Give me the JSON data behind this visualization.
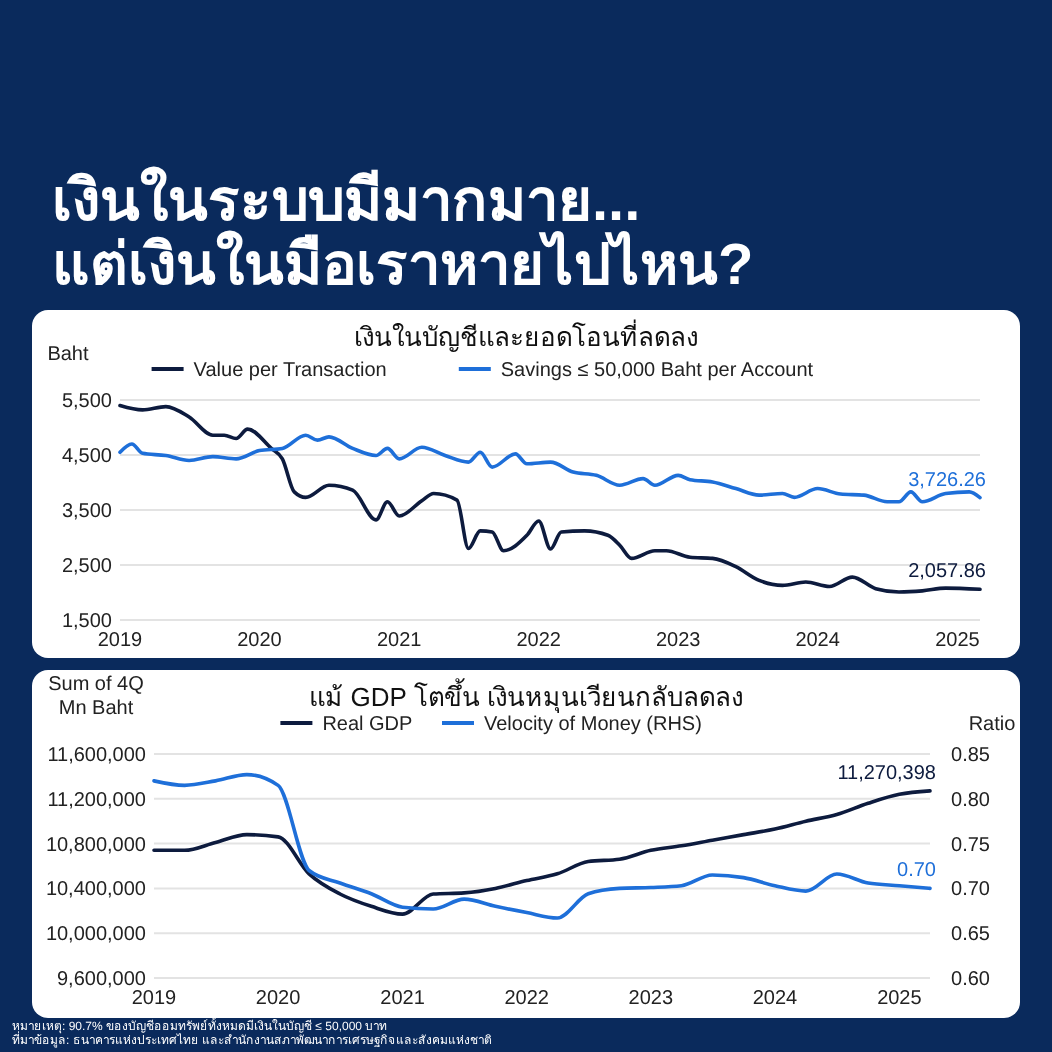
{
  "chart_data": [
    {
      "type": "other",
      "title": "เงินในระบบมีมากมาย...\nแต่เงินในมือเราหายไปไหน?",
      "annotations": [
        "หมายเหตุ: 90.7% ของบัญชีออมทรัพย์ทั้งหมดมีเงินในบัญชี ≤ 50,000 บาท",
        "ที่มาข้อมูล: ธนาคารแห่งประเทศไทย และสำนักงานสภาพัฒนาการเศรษฐกิจและสังคมแห่งชาติ"
      ]
    },
    {
      "type": "line",
      "title": "เงินในบัญชีและยอดโอนที่ลดลง",
      "ylabel": "Baht",
      "legend": "top",
      "grid": "y",
      "xlim": [
        "2019-01",
        "2025-03"
      ],
      "xticks": [
        "2019",
        "2020",
        "2021",
        "2022",
        "2023",
        "2024",
        "2025"
      ],
      "ylim": [
        1500,
        5500
      ],
      "yticks": [
        {
          "value": 1500,
          "label": "1,500"
        },
        {
          "value": 2500,
          "label": "2,500"
        },
        {
          "value": 3500,
          "label": "3,500"
        },
        {
          "value": 4500,
          "label": "4,500"
        },
        {
          "value": 5500,
          "label": "5,500"
        }
      ],
      "series": [
        {
          "name": "Value per Transaction",
          "color": "#0d1b3e",
          "x": [
            "2019-01",
            "2019-03",
            "2019-05",
            "2019-07",
            "2019-09",
            "2019-10",
            "2019-11",
            "2019-12",
            "2020-02",
            "2020-03",
            "2020-04",
            "2020-05",
            "2020-07",
            "2020-09",
            "2020-11",
            "2020-12",
            "2021-01",
            "2021-03",
            "2021-04",
            "2021-06",
            "2021-07",
            "2021-08",
            "2021-09",
            "2021-10",
            "2021-12",
            "2022-01",
            "2022-02",
            "2022-03",
            "2022-05",
            "2022-07",
            "2022-08",
            "2022-09",
            "2022-11",
            "2022-12",
            "2023-02",
            "2023-04",
            "2023-06",
            "2023-08",
            "2023-10",
            "2023-12",
            "2024-02",
            "2024-04",
            "2024-06",
            "2024-08",
            "2024-10",
            "2024-12",
            "2025-03"
          ],
          "values": [
            5400,
            5320,
            5380,
            5190,
            4860,
            4860,
            4800,
            4970,
            4620,
            4430,
            3830,
            3730,
            3950,
            3860,
            3320,
            3650,
            3390,
            3670,
            3800,
            3680,
            2800,
            3120,
            3100,
            2760,
            3040,
            3300,
            2790,
            3100,
            3120,
            3040,
            2860,
            2620,
            2760,
            2760,
            2640,
            2620,
            2470,
            2220,
            2130,
            2190,
            2110,
            2280,
            2070,
            2010,
            2030,
            2080,
            2057.86
          ],
          "value_labels": [
            null,
            null,
            null,
            null,
            null,
            null,
            null,
            null,
            null,
            null,
            null,
            null,
            null,
            null,
            null,
            null,
            null,
            null,
            null,
            null,
            null,
            null,
            null,
            null,
            null,
            null,
            null,
            null,
            null,
            null,
            null,
            null,
            null,
            null,
            null,
            null,
            null,
            null,
            null,
            null,
            null,
            null,
            null,
            null,
            null,
            null,
            "2,057.86"
          ]
        },
        {
          "name": "Savings ≤ 50,000 Baht per Account",
          "color": "#1e6fd9",
          "x": [
            "2019-01",
            "2019-02",
            "2019-03",
            "2019-05",
            "2019-07",
            "2019-09",
            "2019-11",
            "2020-01",
            "2020-03",
            "2020-05",
            "2020-06",
            "2020-07",
            "2020-09",
            "2020-11",
            "2020-12",
            "2021-01",
            "2021-03",
            "2021-05",
            "2021-07",
            "2021-08",
            "2021-09",
            "2021-11",
            "2021-12",
            "2022-02",
            "2022-04",
            "2022-06",
            "2022-08",
            "2022-10",
            "2022-11",
            "2023-01",
            "2023-02",
            "2023-04",
            "2023-06",
            "2023-08",
            "2023-10",
            "2023-11",
            "2024-01",
            "2024-03",
            "2024-05",
            "2024-07",
            "2024-08",
            "2024-09",
            "2024-10",
            "2024-12",
            "2025-02",
            "2025-03"
          ],
          "values": [
            4550,
            4700,
            4530,
            4490,
            4400,
            4470,
            4430,
            4580,
            4620,
            4860,
            4770,
            4830,
            4620,
            4490,
            4620,
            4430,
            4640,
            4490,
            4370,
            4550,
            4280,
            4520,
            4340,
            4370,
            4190,
            4130,
            3950,
            4070,
            3950,
            4130,
            4050,
            4010,
            3890,
            3770,
            3800,
            3730,
            3890,
            3790,
            3770,
            3650,
            3650,
            3830,
            3650,
            3800,
            3830,
            3726.26
          ],
          "value_labels": [
            null,
            null,
            null,
            null,
            null,
            null,
            null,
            null,
            null,
            null,
            null,
            null,
            null,
            null,
            null,
            null,
            null,
            null,
            null,
            null,
            null,
            null,
            null,
            null,
            null,
            null,
            null,
            null,
            null,
            null,
            null,
            null,
            null,
            null,
            null,
            null,
            null,
            null,
            null,
            null,
            null,
            null,
            null,
            null,
            null,
            "3,726.26"
          ]
        }
      ]
    },
    {
      "type": "line",
      "title": "แม้ GDP โตขึ้น เงินหมุนเวียนกลับลดลง",
      "ylabel": "Sum of 4Q\nMn Baht",
      "y2label": "Ratio",
      "legend": "top",
      "grid": "y",
      "x": [
        "2019-01",
        "2019-04",
        "2019-07",
        "2019-10",
        "2020-01",
        "2020-04",
        "2020-07",
        "2020-10",
        "2021-01",
        "2021-04",
        "2021-07",
        "2021-10",
        "2022-01",
        "2022-04",
        "2022-07",
        "2022-10",
        "2023-01",
        "2023-04",
        "2023-07",
        "2023-10",
        "2024-01",
        "2024-04",
        "2024-07",
        "2024-10",
        "2025-01",
        "2025-04"
      ],
      "xlim": [
        "2019-01",
        "2025-04"
      ],
      "xticks": [
        "2019",
        "2020",
        "2021",
        "2022",
        "2023",
        "2024",
        "2025"
      ],
      "ylim": [
        9600000,
        11600000
      ],
      "yticks": [
        {
          "value": 9600000,
          "label": "9,600,000"
        },
        {
          "value": 10000000,
          "label": "10,000,000"
        },
        {
          "value": 10400000,
          "label": "10,400,000"
        },
        {
          "value": 10800000,
          "label": "10,800,000"
        },
        {
          "value": 11200000,
          "label": "11,200,000"
        },
        {
          "value": 11600000,
          "label": "11,600,000"
        }
      ],
      "y2lim": [
        0.6,
        0.85
      ],
      "y2ticks": [
        {
          "value": 0.6,
          "label": "0.60"
        },
        {
          "value": 0.65,
          "label": "0.65"
        },
        {
          "value": 0.7,
          "label": "0.70"
        },
        {
          "value": 0.75,
          "label": "0.75"
        },
        {
          "value": 0.8,
          "label": "0.80"
        },
        {
          "value": 0.85,
          "label": "0.85"
        }
      ],
      "series": [
        {
          "name": "Real GDP",
          "color": "#0d1b3e",
          "values": [
            10740000,
            10740000,
            10810000,
            10880000,
            10860000,
            10530000,
            10350000,
            10240000,
            10170000,
            10350000,
            10360000,
            10400000,
            10470000,
            10530000,
            10640000,
            10660000,
            10740000,
            10780000,
            10830000,
            10880000,
            10930000,
            11000000,
            11060000,
            11160000,
            11240000,
            11270398
          ],
          "value_labels": [
            null,
            null,
            null,
            null,
            null,
            null,
            null,
            null,
            null,
            null,
            null,
            null,
            null,
            null,
            null,
            null,
            null,
            null,
            null,
            null,
            null,
            null,
            null,
            null,
            null,
            "11,270,398"
          ]
        },
        {
          "name": "Velocity of Money (RHS)",
          "color": "#1e6fd9",
          "axis": "y2",
          "values": [
            0.82,
            0.815,
            0.82,
            0.827,
            0.815,
            0.72,
            0.706,
            0.694,
            0.679,
            0.677,
            0.688,
            0.68,
            0.673,
            0.667,
            0.694,
            0.7,
            0.701,
            0.703,
            0.715,
            0.712,
            0.703,
            0.697,
            0.716,
            0.706,
            0.703,
            0.7
          ],
          "value_labels": [
            null,
            null,
            null,
            null,
            null,
            null,
            null,
            null,
            null,
            null,
            null,
            null,
            null,
            null,
            null,
            null,
            null,
            null,
            null,
            null,
            null,
            null,
            null,
            null,
            null,
            "0.70"
          ]
        }
      ]
    }
  ]
}
